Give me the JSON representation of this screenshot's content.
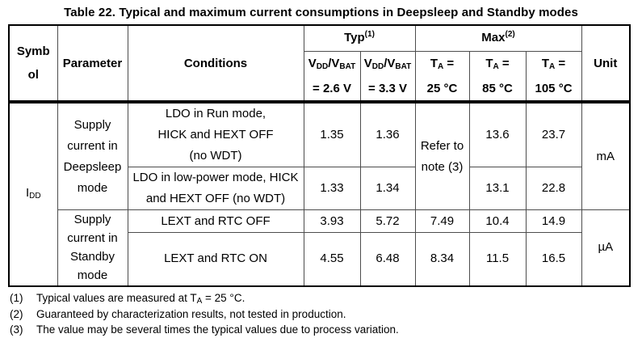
{
  "page": {
    "title": "Table 22. Typical and maximum current consumptions in Deepsleep and Standby modes"
  },
  "table": {
    "header": {
      "symbol": "Symb\nol",
      "parameter": "Parameter",
      "conditions": "Conditions",
      "typ_group": "Typ^(1)^",
      "max_group": "Max^(2)^",
      "unit": "Unit",
      "typ_col_2v6": "V~DD~/V~BAT~\n= 2.6 V",
      "typ_col_3v3": "V~DD~/V~BAT~\n= 3.3 V",
      "max_col_25": "T~A~ =\n25 °C",
      "max_col_85": "T~A~ =\n85 °C",
      "max_col_105": "T~A~ =\n105 °C"
    },
    "body": {
      "symbol": "I~DD~",
      "param_deepsleep": "Supply\ncurrent in\nDeepsleep\nmode",
      "param_standby": "Supply\ncurrent in\nStandby\nmode",
      "unit_deepsleep": "mA",
      "unit_standby": "µA",
      "refer_note": "Refer to\nnote (3)",
      "rows": [
        {
          "conditions": "LDO in Run mode,\nHICK and HEXT OFF\n(no WDT)",
          "typ26": "1.35",
          "typ33": "1.36",
          "max25": "",
          "max85": "13.6",
          "max105": "23.7"
        },
        {
          "conditions": "LDO in low-power mode, HICK\nand HEXT OFF (no WDT)",
          "typ26": "1.33",
          "typ33": "1.34",
          "max25": "",
          "max85": "13.1",
          "max105": "22.8"
        },
        {
          "conditions": "LEXT and RTC OFF",
          "typ26": "3.93",
          "typ33": "5.72",
          "max25": "7.49",
          "max85": "10.4",
          "max105": "14.9"
        },
        {
          "conditions": "LEXT and RTC ON",
          "typ26": "4.55",
          "typ33": "6.48",
          "max25": "8.34",
          "max85": "11.5",
          "max105": "16.5"
        }
      ]
    }
  },
  "footnotes": [
    {
      "num": "(1)",
      "text": "Typical values are measured at T~A~ = 25 °C."
    },
    {
      "num": "(2)",
      "text": "Guaranteed by characterization results, not tested in production."
    },
    {
      "num": "(3)",
      "text": "The value may be several times the typical values due to process variation."
    }
  ]
}
